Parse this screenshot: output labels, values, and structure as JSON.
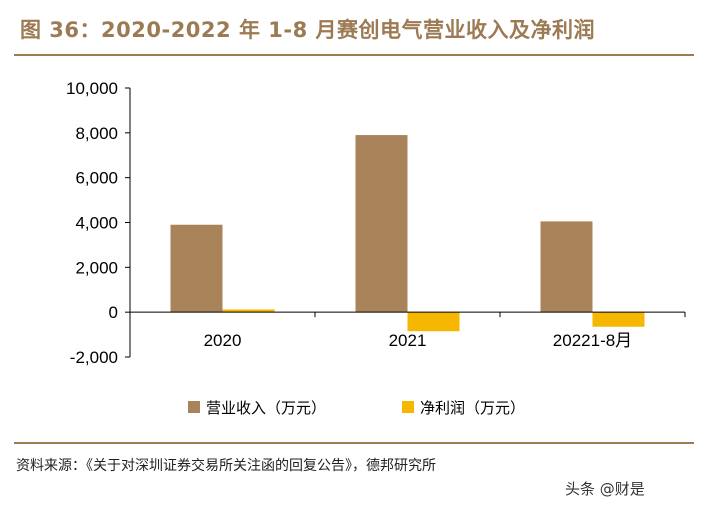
{
  "chart_data": {
    "type": "bar",
    "title": "图 36：2020-2022 年 1-8 月赛创电气营业收入及净利润",
    "categories": [
      "2020",
      "2021",
      "20221-8月"
    ],
    "series": [
      {
        "name": "营业收入（万元）",
        "color": "#a9845b",
        "values": [
          3900,
          7900,
          4050
        ]
      },
      {
        "name": "净利润（万元）",
        "color": "#f5b700",
        "values": [
          120,
          -850,
          -650
        ]
      }
    ],
    "ylim": [
      -2000,
      10000
    ],
    "yticks": [
      -2000,
      0,
      2000,
      4000,
      6000,
      8000,
      10000
    ],
    "ytick_labels": [
      "-2,000",
      "0",
      "2,000",
      "4,000",
      "6,000",
      "8,000",
      "10,000"
    ],
    "xlabel": "",
    "ylabel": "",
    "grid": false,
    "legend_position": "bottom"
  },
  "source": "资料来源：《关于对深圳证券交易所关注函的回复公告》，德邦研究所",
  "watermark": "头条 @财是"
}
